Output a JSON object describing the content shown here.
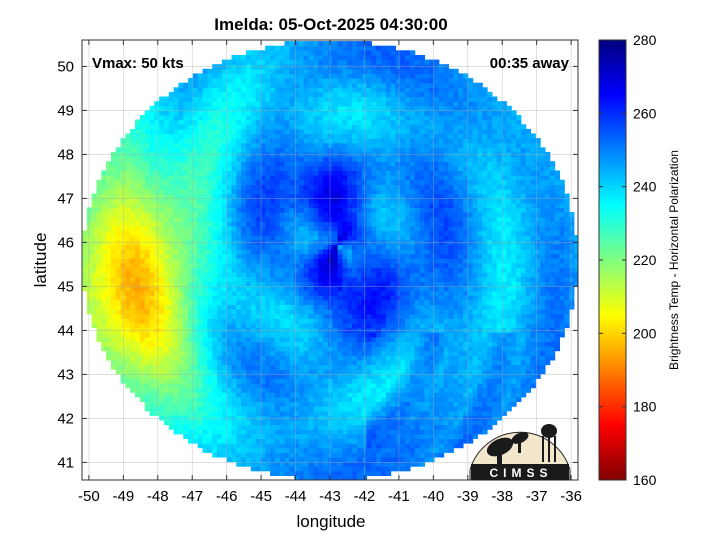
{
  "chart_data": {
    "type": "heatmap",
    "title": "Imelda: 05-Oct-2025 04:30:00",
    "xlabel": "longitude",
    "ylabel": "latitude",
    "xlim": [
      -50.2,
      -35.8
    ],
    "ylim": [
      40.6,
      50.6
    ],
    "xticks": [
      -50,
      -49,
      -48,
      -47,
      -46,
      -45,
      -44,
      -43,
      -42,
      -41,
      -40,
      -39,
      -38,
      -37,
      -36
    ],
    "yticks": [
      41,
      42,
      43,
      44,
      45,
      46,
      47,
      48,
      49,
      50
    ],
    "grid": true,
    "annotations": {
      "left": "Vmax: 50 kts",
      "right": "00:35 away"
    },
    "colorbar": {
      "label": "Brightness Temp - Horizontal Polarization",
      "min": 160,
      "max": 280,
      "ticks": [
        160,
        180,
        200,
        220,
        240,
        260,
        280
      ],
      "colors": [
        "#800000",
        "#ff0000",
        "#ff8000",
        "#ffff00",
        "#80ff80",
        "#00ffff",
        "#0080ff",
        "#0000ff",
        "#000080"
      ]
    },
    "field": {
      "center": {
        "lon": -42.8,
        "lat": 46.0
      },
      "swath_center": {
        "lon": -43.0,
        "lat": 45.6
      },
      "swath_radius_deg": {
        "lon": 7.2,
        "lat": 5.0
      },
      "warm_region": {
        "lon": -48.8,
        "lat": 45.0,
        "temp": 205
      },
      "core_temp": 266,
      "background_temp": 245
    },
    "logo": "CIMSS"
  }
}
